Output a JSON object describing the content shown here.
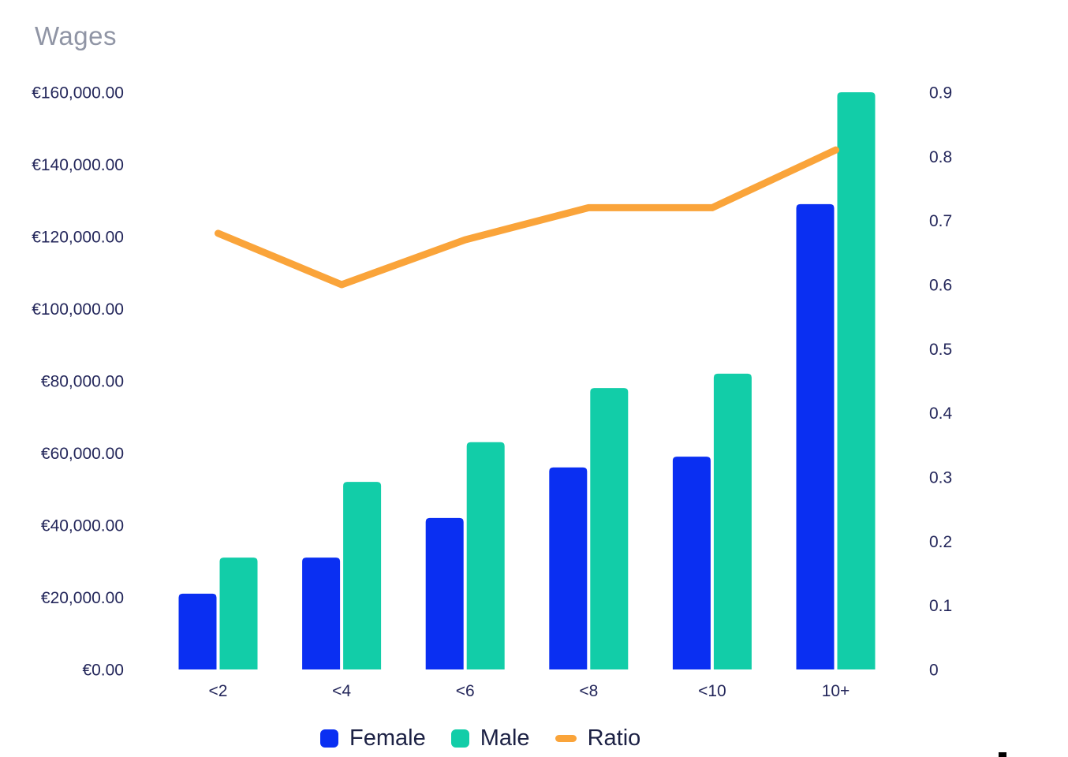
{
  "title": "Wages",
  "colors": {
    "female": "#0A2FF2",
    "male": "#12CDA8",
    "ratio": "#FAA43A",
    "axis_text": "#23265A",
    "legend_text": "#1C2144",
    "title_text": "#9095A5"
  },
  "chart_data": {
    "type": "bar",
    "subtype": "grouped-bar-with-line-combo",
    "title": "Wages",
    "categories": [
      "<2",
      "<4",
      "<6",
      "<8",
      "<10",
      "10+"
    ],
    "series": [
      {
        "name": "Female",
        "type": "bar",
        "axis": "left",
        "color_key": "female",
        "values": [
          21000,
          31000,
          42000,
          56000,
          59000,
          129000
        ]
      },
      {
        "name": "Male",
        "type": "bar",
        "axis": "left",
        "color_key": "male",
        "values": [
          31000,
          52000,
          63000,
          78000,
          82000,
          160000
        ]
      },
      {
        "name": "Ratio",
        "type": "line",
        "axis": "right",
        "color_key": "ratio",
        "values": [
          0.68,
          0.6,
          0.67,
          0.72,
          0.72,
          0.81
        ]
      }
    ],
    "left_axis": {
      "min": 0,
      "max": 160000,
      "tick_step": 20000,
      "tick_values": [
        0,
        20000,
        40000,
        60000,
        80000,
        100000,
        120000,
        140000,
        160000
      ],
      "tick_labels": [
        "€0.00",
        "€20,000.00",
        "€40,000.00",
        "€60,000.00",
        "€80,000.00",
        "€100,000.00",
        "€120,000.00",
        "€140,000.00",
        "€160,000.00"
      ]
    },
    "right_axis": {
      "min": 0,
      "max": 0.9,
      "tick_step": 0.1,
      "tick_values": [
        0,
        0.1,
        0.2,
        0.3,
        0.4,
        0.5,
        0.6,
        0.7,
        0.8,
        0.9
      ],
      "tick_labels": [
        "0",
        "0.1",
        "0.2",
        "0.3",
        "0.4",
        "0.5",
        "0.6",
        "0.7",
        "0.8",
        "0.9"
      ]
    },
    "grid": false,
    "legend_position": "bottom"
  }
}
